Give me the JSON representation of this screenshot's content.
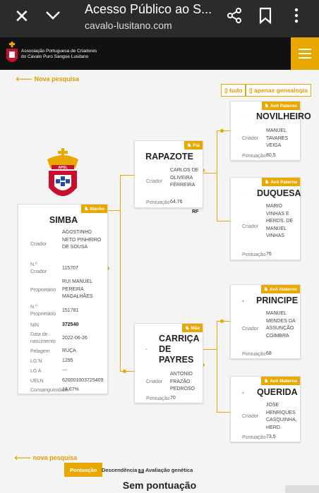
{
  "browser": {
    "title": "Acesso Público ao S...",
    "url": "cavalo-lusitano.com"
  },
  "header": {
    "org_line1": "Associação Portuguesa de Criadores",
    "org_line2": "do Cavalo Puro Sangue Lusitano"
  },
  "nav": {
    "nova_pesquisa_top": "Nova pesquisa",
    "nova_pesquisa_bottom": "nova pesquisa",
    "btn_tudo": "tudo",
    "btn_genealogia": "apenas genealogia"
  },
  "crest_text": "APSL",
  "horse": {
    "badge": "Macho",
    "name": "SIMBA",
    "fields": [
      {
        "label": "Criador",
        "value": "AGOSTINHO NETO PINHEIRO DE SOUSA"
      },
      {
        "label": "N.º Criador",
        "value": "115707"
      },
      {
        "label": "Proprietário",
        "value": "RUI MANUEL PEREIRA MAGALHÃES"
      },
      {
        "label": "N.º Proprietário",
        "value": "151781"
      },
      {
        "label": "NIN",
        "value": "372540"
      },
      {
        "label": "Data de nascimento",
        "value": "2022-06-26"
      },
      {
        "label": "Pelagem",
        "value": "RUÇA"
      },
      {
        "label": "LG N",
        "value": "1295"
      },
      {
        "label": "LG A",
        "value": "---"
      },
      {
        "label": "UELN",
        "value": "620001003725409"
      },
      {
        "label": "Consanguinidade",
        "value": "14,67%"
      }
    ]
  },
  "pai": {
    "badge": "Pai",
    "name": "RAPAZOTE",
    "criador_label": "Criador",
    "criador": "CARLOS DE OLIVEIRA FERREIRA",
    "pontuacao_label": "Pontuação",
    "pontuacao": "64,76",
    "rf": "RF"
  },
  "mae": {
    "badge": "Mãe",
    "name": "CARRIÇA DE PAYRES",
    "criador_label": "Criador",
    "criador": "ANTONIO FRAZÃO PEDROSO",
    "pontuacao_label": "Pontuação",
    "pontuacao": "70"
  },
  "avo_paterno": {
    "badge": "Avô Paterno",
    "name": "NOVILHEIRO",
    "criador_label": "Criador",
    "criador": "MANUEL TAVARES VEIGA",
    "pontuacao_label": "Pontuação",
    "pontuacao": "80,5"
  },
  "avo_paterna": {
    "badge": "Avó Paterna",
    "name": "DUQUESA",
    "criador_label": "Criador",
    "criador": "MARIO VINHAS E HERDS. DE MANUEL VINHAS",
    "pontuacao_label": "Pontuação",
    "pontuacao": "76"
  },
  "avo_materno": {
    "badge": "Avô Materno",
    "name": "PRINCIPE",
    "criador_label": "Criador",
    "criador": "MANUEL MENDES DA ASSUNÇÃO COIMBRA",
    "pontuacao_label": "Pontuação",
    "pontuacao": "68"
  },
  "avo_materna": {
    "badge": "Avó Materna",
    "name": "QUERIDA",
    "criador_label": "Criador",
    "criador": "JOSE HENRIQUES CASQUINHA, HERD.",
    "pontuacao_label": "Pontuação",
    "pontuacao": "73,5"
  },
  "tabs": [
    {
      "label": "Pontuação"
    },
    {
      "label": "Descendência",
      "count": "0"
    },
    {
      "label": "Avaliação genética"
    }
  ],
  "sem_pontuacao": "Sem pontuação",
  "colors": {
    "accent": "#e8a800",
    "header": "#111111",
    "chrome": "#2b2b2b"
  }
}
